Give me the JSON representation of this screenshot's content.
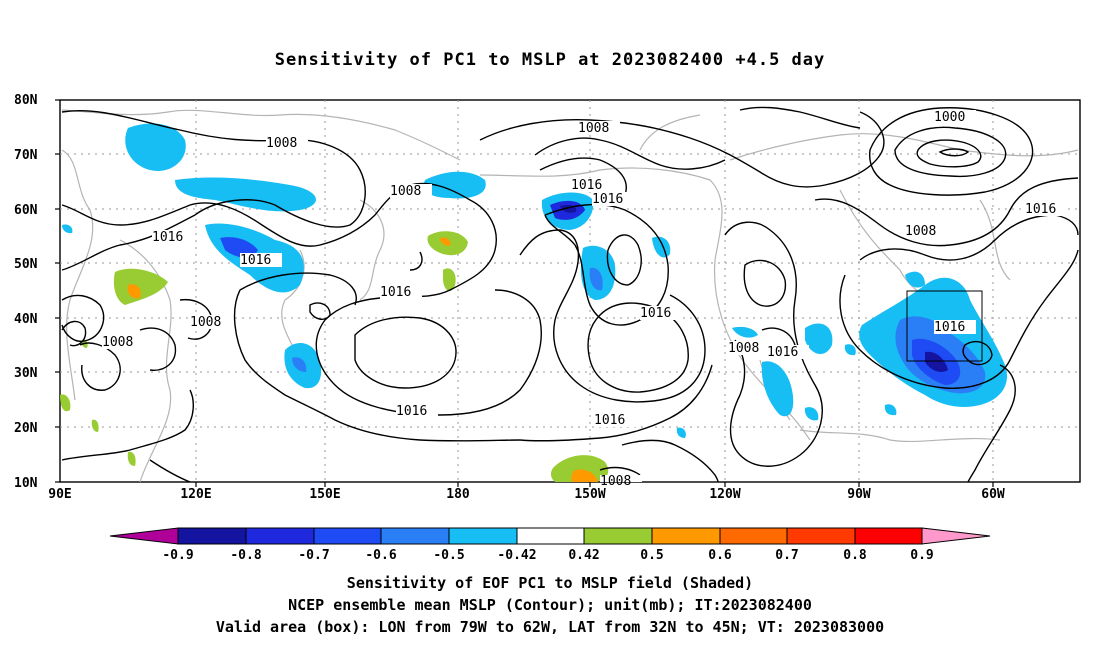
{
  "title": "Sensitivity of PC1 to MSLP at 2023082400 +4.5 day",
  "lat_labels": [
    "80N",
    "70N",
    "60N",
    "50N",
    "40N",
    "30N",
    "20N",
    "10N"
  ],
  "lon_labels": [
    "90E",
    "120E",
    "150E",
    "180",
    "150W",
    "120W",
    "90W",
    "60W"
  ],
  "contour_labels": {
    "c1008a": "1008",
    "c1008b": "1008",
    "c1008c": "1008",
    "c1008d": "1008",
    "c1008e": "1008",
    "c1008f": "1008",
    "c1008g": "1008",
    "c1008h": "1008",
    "c1016a": "1016",
    "c1016b": "1016",
    "c1016c": "1016",
    "c1016d": "1016",
    "c1016e": "1016",
    "c1016f": "1016",
    "c1016g": "1016",
    "c1016h": "1016",
    "c1016i": "1016",
    "c1016j": "1016",
    "c1016k": "1016",
    "c1000": "1000"
  },
  "colorbar": {
    "labels": [
      "-0.9",
      "-0.8",
      "-0.7",
      "-0.6",
      "-0.5",
      "-0.42",
      "0.42",
      "0.5",
      "0.6",
      "0.7",
      "0.8",
      "0.9"
    ],
    "colors": [
      "#b0009a",
      "#1414a0",
      "#1e28dc",
      "#1f4bf5",
      "#2b7ff6",
      "#16bef4",
      "#ffffff",
      "#99cc33",
      "#ff9900",
      "#ff6a00",
      "#ff3a00",
      "#ff0000",
      "#ff99cc"
    ]
  },
  "valid_box": {
    "lon_from": "79W",
    "lon_to": "62W",
    "lat_from": "32N",
    "lat_to": "45N"
  },
  "caption": {
    "line1": "Sensitivity of EOF PC1 to MSLP field (Shaded)",
    "line2": "NCEP ensemble mean MSLP (Contour); unit(mb); IT:2023082400",
    "line3": "Valid area (box): LON from 79W to 62W, LAT from 32N to 45N; VT: 2023083000"
  }
}
